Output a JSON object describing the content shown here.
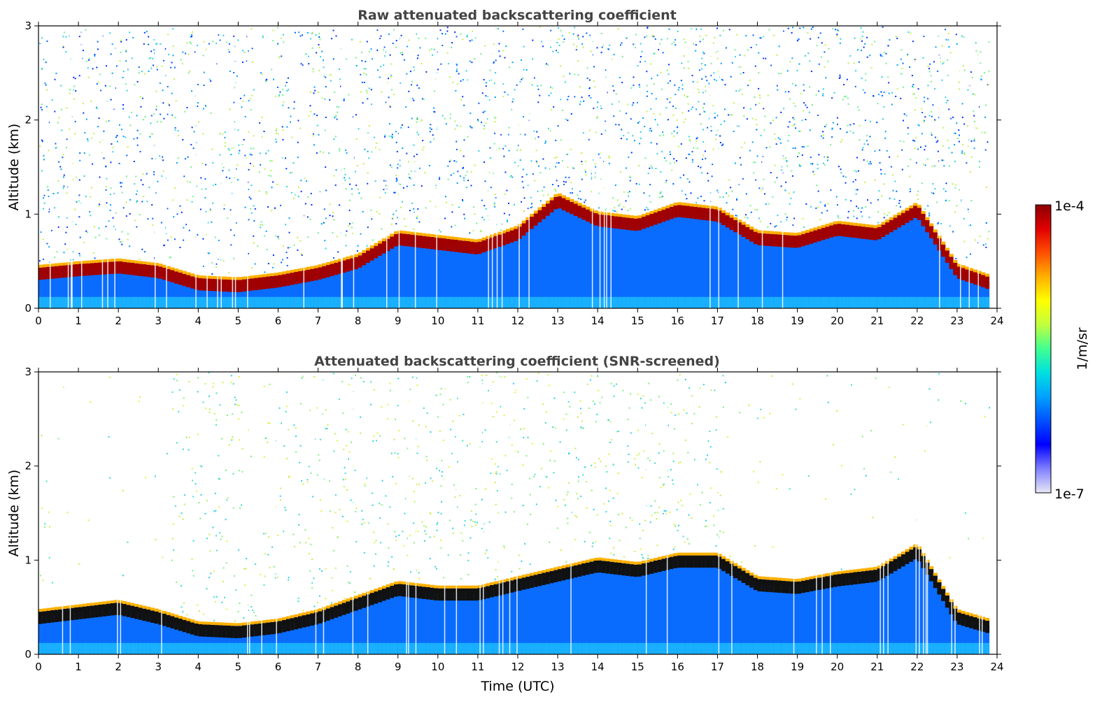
{
  "chart_data": [
    {
      "type": "heatmap",
      "title": "Raw attenuated backscattering coefficient",
      "xlabel": "",
      "ylabel": "Altitude (km)",
      "xlim": [
        0,
        24
      ],
      "ylim": [
        0,
        3
      ],
      "xticks": [
        "0",
        "1",
        "2",
        "3",
        "4",
        "5",
        "6",
        "7",
        "8",
        "9",
        "10",
        "11",
        "12",
        "13",
        "14",
        "15",
        "16",
        "17",
        "18",
        "19",
        "20",
        "21",
        "22",
        "23",
        "24"
      ],
      "yticks": [
        "0",
        "1",
        "2",
        "3"
      ],
      "layer_top_km": [
        {
          "t": 0,
          "h": 0.38
        },
        {
          "t": 1,
          "h": 0.42
        },
        {
          "t": 2,
          "h": 0.45
        },
        {
          "t": 3,
          "h": 0.4
        },
        {
          "t": 4,
          "h": 0.27
        },
        {
          "t": 5,
          "h": 0.25
        },
        {
          "t": 6,
          "h": 0.3
        },
        {
          "t": 7,
          "h": 0.38
        },
        {
          "t": 8,
          "h": 0.5
        },
        {
          "t": 9,
          "h": 0.75
        },
        {
          "t": 10,
          "h": 0.7
        },
        {
          "t": 11,
          "h": 0.65
        },
        {
          "t": 12,
          "h": 0.8
        },
        {
          "t": 13,
          "h": 1.15
        },
        {
          "t": 14,
          "h": 0.95
        },
        {
          "t": 15,
          "h": 0.9
        },
        {
          "t": 16,
          "h": 1.05
        },
        {
          "t": 17,
          "h": 1.0
        },
        {
          "t": 18,
          "h": 0.75
        },
        {
          "t": 19,
          "h": 0.72
        },
        {
          "t": 20,
          "h": 0.85
        },
        {
          "t": 21,
          "h": 0.8
        },
        {
          "t": 22,
          "h": 1.05
        },
        {
          "t": 23,
          "h": 0.4
        },
        {
          "t": 23.8,
          "h": 0.28
        }
      ]
    },
    {
      "type": "heatmap",
      "title": "Attenuated backscattering coefficient (SNR-screened)",
      "xlabel": "Time (UTC)",
      "ylabel": "Altitude (km)",
      "xlim": [
        0,
        24
      ],
      "ylim": [
        0,
        3
      ],
      "xticks": [
        "0",
        "1",
        "2",
        "3",
        "4",
        "5",
        "6",
        "7",
        "8",
        "9",
        "10",
        "11",
        "12",
        "13",
        "14",
        "15",
        "16",
        "17",
        "18",
        "19",
        "20",
        "21",
        "22",
        "23",
        "24"
      ],
      "yticks": [
        "0",
        "1",
        "2",
        "3"
      ],
      "layer_top_km": [
        {
          "t": 0,
          "h": 0.4
        },
        {
          "t": 1,
          "h": 0.45
        },
        {
          "t": 2,
          "h": 0.5
        },
        {
          "t": 3,
          "h": 0.4
        },
        {
          "t": 4,
          "h": 0.27
        },
        {
          "t": 5,
          "h": 0.25
        },
        {
          "t": 6,
          "h": 0.3
        },
        {
          "t": 7,
          "h": 0.4
        },
        {
          "t": 8,
          "h": 0.55
        },
        {
          "t": 9,
          "h": 0.7
        },
        {
          "t": 10,
          "h": 0.65
        },
        {
          "t": 11,
          "h": 0.65
        },
        {
          "t": 12,
          "h": 0.75
        },
        {
          "t": 13,
          "h": 0.85
        },
        {
          "t": 14,
          "h": 0.95
        },
        {
          "t": 15,
          "h": 0.9
        },
        {
          "t": 16,
          "h": 1.0
        },
        {
          "t": 17,
          "h": 1.0
        },
        {
          "t": 18,
          "h": 0.75
        },
        {
          "t": 19,
          "h": 0.72
        },
        {
          "t": 20,
          "h": 0.8
        },
        {
          "t": 21,
          "h": 0.85
        },
        {
          "t": 22,
          "h": 1.1
        },
        {
          "t": 23,
          "h": 0.4
        },
        {
          "t": 23.8,
          "h": 0.3
        }
      ]
    }
  ],
  "colorbar": {
    "label": "1/m/sr",
    "max_label": "1e-4",
    "min_label": "1e-7",
    "scale": "log",
    "colors": [
      "#e8e8f5",
      "#8080ff",
      "#0000ff",
      "#0050ff",
      "#00a0ff",
      "#00e0e0",
      "#40ff90",
      "#c0ff40",
      "#ffff00",
      "#ffb000",
      "#ff5000",
      "#e00000",
      "#8b0000"
    ]
  }
}
